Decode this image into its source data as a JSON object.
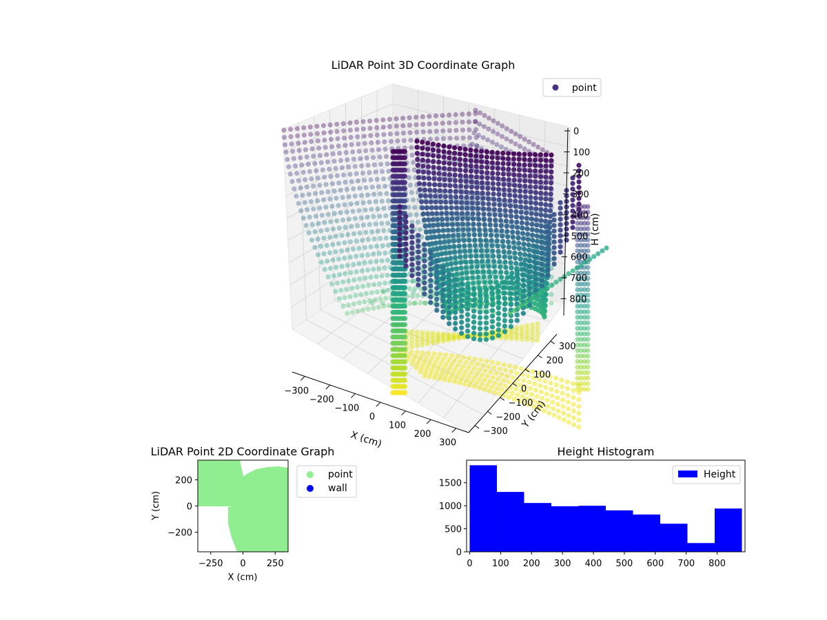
{
  "chart_data": [
    {
      "type": "scatter",
      "subtype": "scatter3d",
      "title": "LiDAR Point 3D Coordinate Graph",
      "xlabel": "X (cm)",
      "ylabel": "Y (cm)",
      "zlabel": "H (cm)",
      "x_ticks": [
        "−300",
        "−200",
        "−100",
        "0",
        "100",
        "200",
        "300"
      ],
      "y_ticks": [
        "−300",
        "−200",
        "−100",
        "0",
        "100",
        "200",
        "300"
      ],
      "z_ticks": [
        "0",
        "100",
        "200",
        "300",
        "400",
        "500",
        "600",
        "700",
        "800"
      ],
      "xlim": [
        -350,
        350
      ],
      "ylim": [
        -350,
        350
      ],
      "zlim": [
        0,
        880
      ],
      "z_inverted": true,
      "colormap": "viridis",
      "legend": {
        "position": "top-right",
        "entries": [
          {
            "label": "point",
            "color": "#46327e"
          }
        ]
      },
      "description_of_points": "LiDAR samples forming vertical scan lines that descend from the top into a bowl-shaped curve; color encodes height (purple near 0 cm, yellow near 880 cm)"
    },
    {
      "type": "scatter",
      "title": "LiDAR Point 2D Coordinate Graph",
      "xlabel": "X (cm)",
      "ylabel": "Y (cm)",
      "x_ticks": [
        "−250",
        "0",
        "250"
      ],
      "y_ticks": [
        "200",
        "0",
        "−200"
      ],
      "xlim": [
        -350,
        350
      ],
      "ylim": [
        -350,
        350
      ],
      "legend": {
        "position": "outside-right",
        "entries": [
          {
            "label": "point",
            "color": "#90ee90"
          },
          {
            "label": "wall",
            "color": "#0000ff"
          }
        ]
      },
      "series": [
        {
          "name": "point",
          "color": "#90ee90"
        },
        {
          "name": "wall",
          "color": "#0000ff"
        }
      ]
    },
    {
      "type": "bar",
      "subtype": "histogram",
      "title": "Height Histogram",
      "xlabel": "",
      "ylabel": "",
      "bin_edges": [
        0,
        88,
        176,
        264,
        352,
        440,
        528,
        616,
        704,
        792,
        880
      ],
      "values": [
        1880,
        1300,
        1060,
        990,
        1000,
        900,
        810,
        610,
        190,
        940
      ],
      "xlim": [
        -10,
        890
      ],
      "ylim": [
        0,
        1990
      ],
      "x_ticks": [
        0,
        100,
        200,
        300,
        400,
        500,
        600,
        700,
        800
      ],
      "y_ticks": [
        0,
        500,
        1000,
        1500
      ],
      "color": "#0000ff",
      "legend": {
        "position": "top-right",
        "entries": [
          {
            "label": "Height",
            "color": "#0000ff"
          }
        ]
      }
    }
  ]
}
